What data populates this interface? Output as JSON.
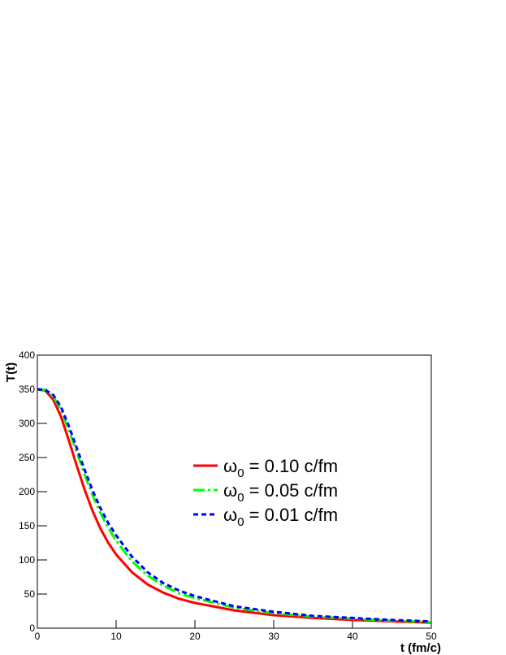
{
  "chart_data": {
    "type": "line",
    "x_label": "t (fm/c)",
    "y_label": "T(t)",
    "x": [
      0,
      1,
      2,
      3,
      4,
      5,
      6,
      7,
      8,
      9,
      10,
      12,
      14,
      16,
      18,
      20,
      25,
      30,
      35,
      40,
      45,
      50
    ],
    "series": [
      {
        "name": "ω0 = 0.10 c/fm",
        "color": "#ff0000",
        "dash": "solid",
        "values": [
          350,
          348,
          335,
          310,
          275,
          238,
          203,
          172,
          146,
          125,
          108,
          82,
          64,
          52,
          43,
          37,
          26,
          19,
          15,
          12,
          10,
          8
        ]
      },
      {
        "name": "ω0 = 0.05 c/fm",
        "color": "#00ff00",
        "dash": "dashdot",
        "values": [
          350,
          349,
          340,
          320,
          290,
          258,
          225,
          195,
          169,
          147,
          128,
          98,
          77,
          62,
          51,
          44,
          30,
          22,
          17,
          14,
          11,
          9
        ]
      },
      {
        "name": "ω0 = 0.01 c/fm",
        "color": "#0000ff",
        "dash": "dashed",
        "values": [
          350,
          349,
          342,
          324,
          296,
          264,
          232,
          202,
          176,
          154,
          136,
          105,
          82,
          66,
          55,
          47,
          32,
          24,
          18,
          15,
          12,
          10
        ]
      }
    ],
    "xlim": [
      0,
      50
    ],
    "xticks": [
      0,
      10,
      20,
      30,
      40,
      50
    ],
    "ylim": [
      0,
      400
    ],
    "yticks": [
      0,
      50,
      100,
      150,
      200,
      250,
      300,
      350,
      400
    ],
    "grid": false
  }
}
